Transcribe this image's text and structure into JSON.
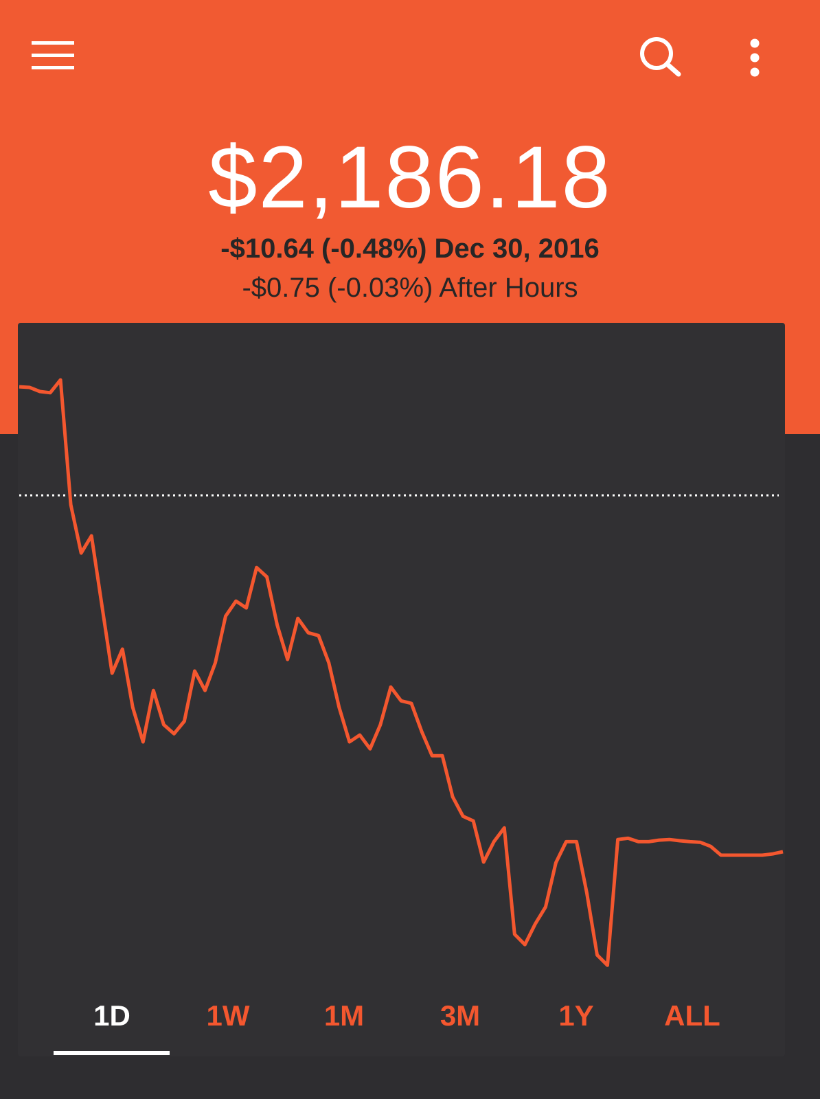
{
  "header": {
    "portfolio_value": "$2,186.18",
    "day_change": "-$10.64 (-0.48%) Dec 30, 2016",
    "after_hours": "-$0.75 (-0.03%) After Hours"
  },
  "chart_data": {
    "type": "line",
    "color": "#f4572f",
    "ylim": [
      2181.3,
      2202.1
    ],
    "reference_line": 2196.82,
    "values": [
      2200.28,
      2200.26,
      2200.13,
      2200.09,
      2200.5,
      2196.52,
      2194.98,
      2195.53,
      2193.34,
      2191.15,
      2191.92,
      2190.06,
      2188.96,
      2190.6,
      2189.51,
      2189.22,
      2189.62,
      2191.22,
      2190.6,
      2191.48,
      2192.97,
      2193.45,
      2193.23,
      2194.52,
      2194.22,
      2192.68,
      2191.59,
      2192.9,
      2192.44,
      2192.35,
      2191.48,
      2190.06,
      2188.96,
      2189.18,
      2188.74,
      2189.51,
      2190.71,
      2190.27,
      2190.19,
      2189.29,
      2188.52,
      2188.52,
      2187.21,
      2186.59,
      2186.44,
      2185.13,
      2185.78,
      2186.22,
      2182.83,
      2182.5,
      2183.16,
      2183.7,
      2185.11,
      2185.78,
      2185.78,
      2184.14,
      2182.17,
      2181.84,
      2185.85,
      2185.89,
      2185.78,
      2185.78,
      2185.83,
      2185.85,
      2185.81,
      2185.78,
      2185.76,
      2185.63,
      2185.35,
      2185.35,
      2185.35,
      2185.35,
      2185.35,
      2185.39,
      2185.46
    ]
  },
  "tabs": {
    "items": [
      "1D",
      "1W",
      "1M",
      "3M",
      "1Y",
      "ALL"
    ],
    "selected": 0
  }
}
